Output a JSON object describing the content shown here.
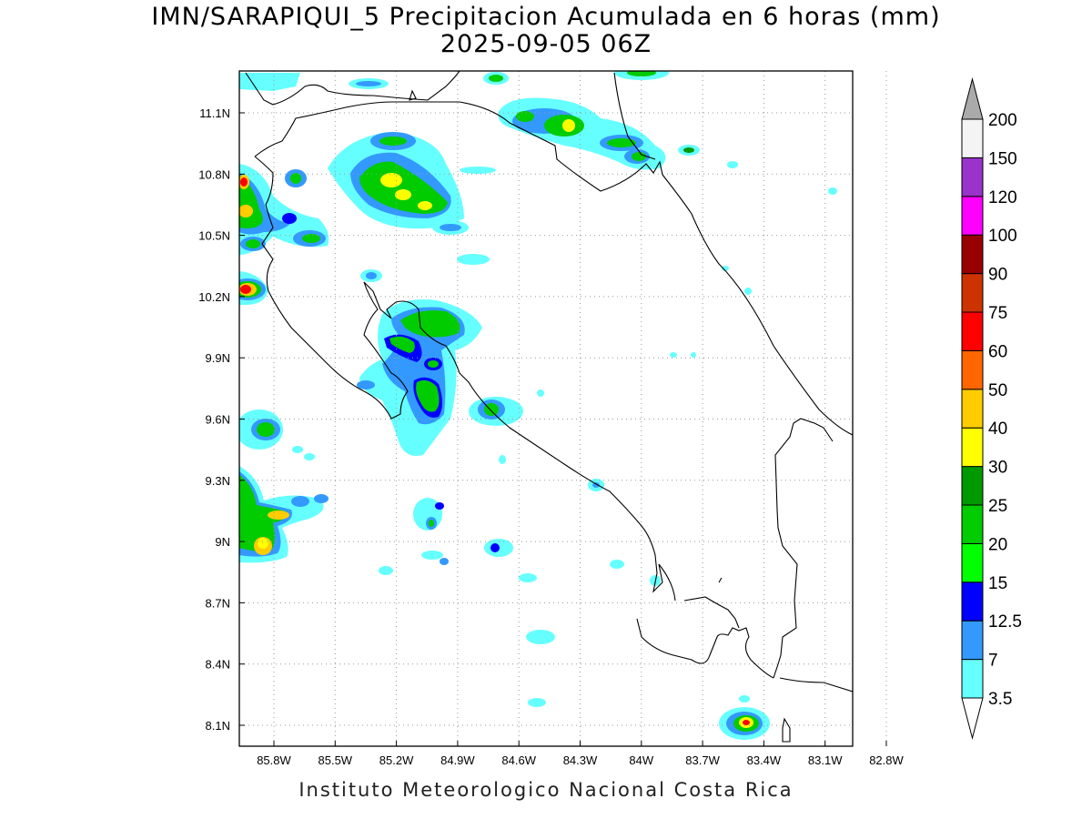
{
  "title": {
    "line1": "IMN/SARAPIQUI_5 Precipitacion Acumulada en 6 horas (mm)",
    "line2": "2025-09-05 06Z"
  },
  "footer": "Instituto Meteorologico Nacional Costa Rica",
  "axes": {
    "lon_ticks": [
      "85.8W",
      "85.5W",
      "85.2W",
      "84.9W",
      "84.6W",
      "84.3W",
      "84W",
      "83.7W",
      "83.4W",
      "83.1W",
      "82.8W"
    ],
    "lat_ticks": [
      "11.1N",
      "10.8N",
      "10.5N",
      "10.2N",
      "9.9N",
      "9.6N",
      "9.3N",
      "9N",
      "8.7N",
      "8.4N",
      "8.1N"
    ]
  },
  "colorbar": {
    "labels": [
      "3.5",
      "7",
      "12.5",
      "15",
      "20",
      "25",
      "30",
      "40",
      "50",
      "60",
      "75",
      "90",
      "100",
      "120",
      "150",
      "200"
    ],
    "colors": [
      "#66ffff",
      "#3399ff",
      "#0000ff",
      "#00ff00",
      "#00cc00",
      "#009900",
      "#ffff00",
      "#ffcc00",
      "#ff6600",
      "#ff0000",
      "#cc3300",
      "#990000",
      "#ff00ff",
      "#9933cc",
      "#f4f4f4"
    ],
    "top_triangle": "#aaaaaa",
    "bottom_triangle": "#ffffff"
  },
  "colors": {
    "coastline": "#000000",
    "grid": "#999999"
  }
}
